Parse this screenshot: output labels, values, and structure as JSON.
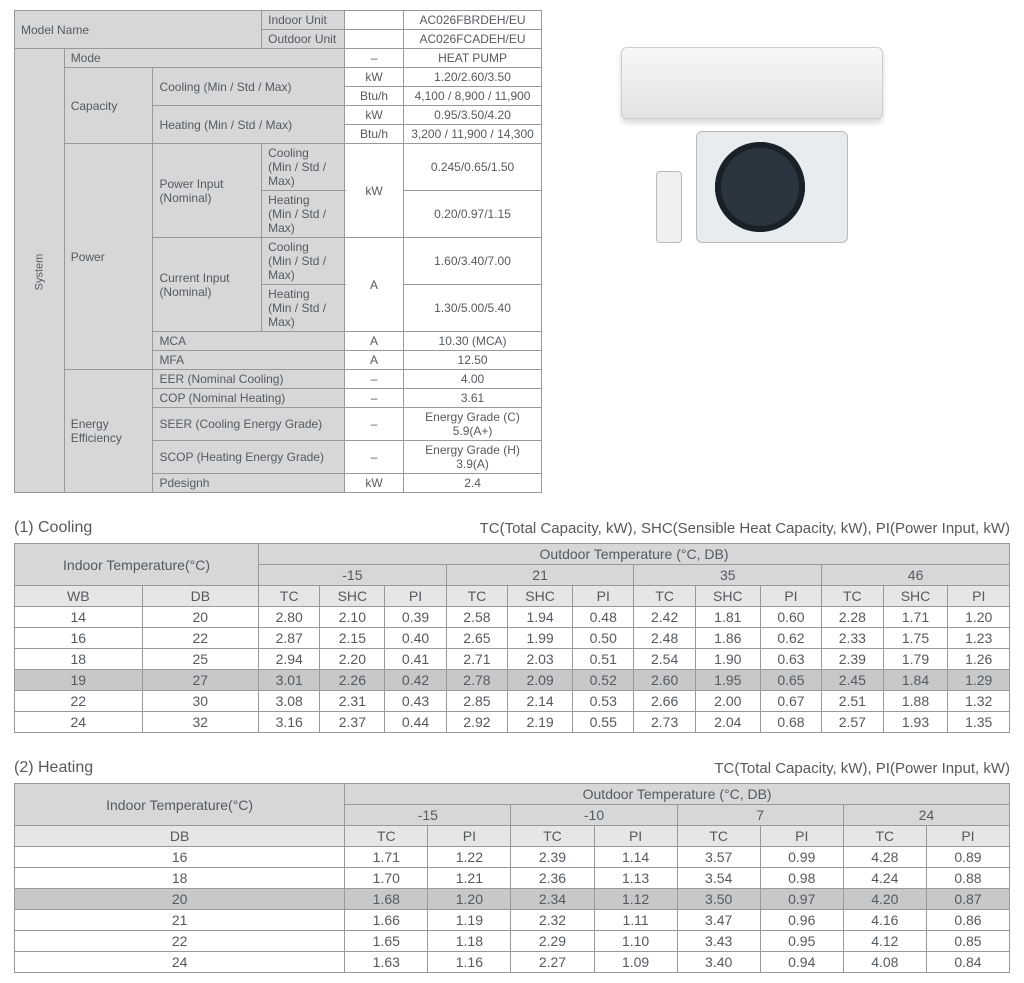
{
  "spec": {
    "model_name_label": "Model Name",
    "indoor_unit_label": "Indoor Unit",
    "indoor_unit": "AC026FBRDEH/EU",
    "outdoor_unit_label": "Outdoor Unit",
    "outdoor_unit": "AC026FCADEH/EU",
    "system_label": "System",
    "mode_label": "Mode",
    "mode_value": "HEAT PUMP",
    "capacity_label": "Capacity",
    "cooling_label": "Cooling (Min / Std / Max)",
    "heating_label": "Heating (Min / Std / Max)",
    "cap_cool_kw": "1.20/2.60/3.50",
    "cap_cool_btu": "4,100 / 8,900 / 11,900",
    "cap_heat_kw": "0.95/3.50/4.20",
    "cap_heat_btu": "3,200 / 11,900 / 14,300",
    "power_label": "Power",
    "power_input_label": "Power Input (Nominal)",
    "current_input_label": "Current Input (Nominal)",
    "cooling_msm": "Cooling\n(Min / Std / Max)",
    "heating_msm": "Heating\n(Min / Std / Max)",
    "pi_cool": "0.245/0.65/1.50",
    "pi_heat": "0.20/0.97/1.15",
    "ci_cool": "1.60/3.40/7.00",
    "ci_heat": "1.30/5.00/5.40",
    "mca_label": "MCA",
    "mca": "10.30 (MCA)",
    "mfa_label": "MFA",
    "mfa": "12.50",
    "energy_label": "Energy Efficiency",
    "eer_label": "EER (Nominal Cooling)",
    "eer": "4.00",
    "cop_label": "COP (Nominal Heating)",
    "cop": "3.61",
    "seer_label": "SEER (Cooling Energy Grade)",
    "seer": "Energy Grade (C) 5.9(A+)",
    "scop_label": "SCOP (Heating Energy Grade)",
    "scop": "Energy Grade (H) 3.9(A)",
    "pdesignh_label": "Pdesignh",
    "pdesignh": "2.4",
    "u_kw": "kW",
    "u_btu": "Btu/h",
    "u_a": "A",
    "u_dash": "–"
  },
  "cooling": {
    "title": "(1) Cooling",
    "legend": "TC(Total Capacity, kW), SHC(Sensible Heat Capacity, kW), PI(Power Input, kW)",
    "indoor_label": "Indoor Temperature(°C)",
    "outdoor_label": "Outdoor Temperature (°C, DB)",
    "outdoor_temps": [
      "-15",
      "21",
      "35",
      "46"
    ],
    "sub_cols": [
      "WB",
      "DB",
      "TC",
      "SHC",
      "PI",
      "TC",
      "SHC",
      "PI",
      "TC",
      "SHC",
      "PI",
      "TC",
      "SHC",
      "PI"
    ],
    "rows": [
      [
        "14",
        "20",
        "2.80",
        "2.10",
        "0.39",
        "2.58",
        "1.94",
        "0.48",
        "2.42",
        "1.81",
        "0.60",
        "2.28",
        "1.71",
        "1.20"
      ],
      [
        "16",
        "22",
        "2.87",
        "2.15",
        "0.40",
        "2.65",
        "1.99",
        "0.50",
        "2.48",
        "1.86",
        "0.62",
        "2.33",
        "1.75",
        "1.23"
      ],
      [
        "18",
        "25",
        "2.94",
        "2.20",
        "0.41",
        "2.71",
        "2.03",
        "0.51",
        "2.54",
        "1.90",
        "0.63",
        "2.39",
        "1.79",
        "1.26"
      ],
      [
        "19",
        "27",
        "3.01",
        "2.26",
        "0.42",
        "2.78",
        "2.09",
        "0.52",
        "2.60",
        "1.95",
        "0.65",
        "2.45",
        "1.84",
        "1.29"
      ],
      [
        "22",
        "30",
        "3.08",
        "2.31",
        "0.43",
        "2.85",
        "2.14",
        "0.53",
        "2.66",
        "2.00",
        "0.67",
        "2.51",
        "1.88",
        "1.32"
      ],
      [
        "24",
        "32",
        "3.16",
        "2.37",
        "0.44",
        "2.92",
        "2.19",
        "0.55",
        "2.73",
        "2.04",
        "0.68",
        "2.57",
        "1.93",
        "1.35"
      ]
    ],
    "highlight_index": 3
  },
  "heating": {
    "title": "(2) Heating",
    "legend": "TC(Total Capacity, kW), PI(Power Input, kW)",
    "indoor_label": "Indoor Temperature(°C)",
    "outdoor_label": "Outdoor Temperature (°C, DB)",
    "outdoor_temps": [
      "-15",
      "-10",
      "7",
      "24"
    ],
    "sub_cols": [
      "DB",
      "TC",
      "PI",
      "TC",
      "PI",
      "TC",
      "PI",
      "TC",
      "PI"
    ],
    "rows": [
      [
        "16",
        "1.71",
        "1.22",
        "2.39",
        "1.14",
        "3.57",
        "0.99",
        "4.28",
        "0.89"
      ],
      [
        "18",
        "1.70",
        "1.21",
        "2.36",
        "1.13",
        "3.54",
        "0.98",
        "4.24",
        "0.88"
      ],
      [
        "20",
        "1.68",
        "1.20",
        "2.34",
        "1.12",
        "3.50",
        "0.97",
        "4.20",
        "0.87"
      ],
      [
        "21",
        "1.66",
        "1.19",
        "2.32",
        "1.11",
        "3.47",
        "0.96",
        "4.16",
        "0.86"
      ],
      [
        "22",
        "1.65",
        "1.18",
        "2.29",
        "1.10",
        "3.43",
        "0.95",
        "4.12",
        "0.85"
      ],
      [
        "24",
        "1.63",
        "1.16",
        "2.27",
        "1.09",
        "3.40",
        "0.94",
        "4.08",
        "0.84"
      ]
    ],
    "highlight_index": 2
  }
}
